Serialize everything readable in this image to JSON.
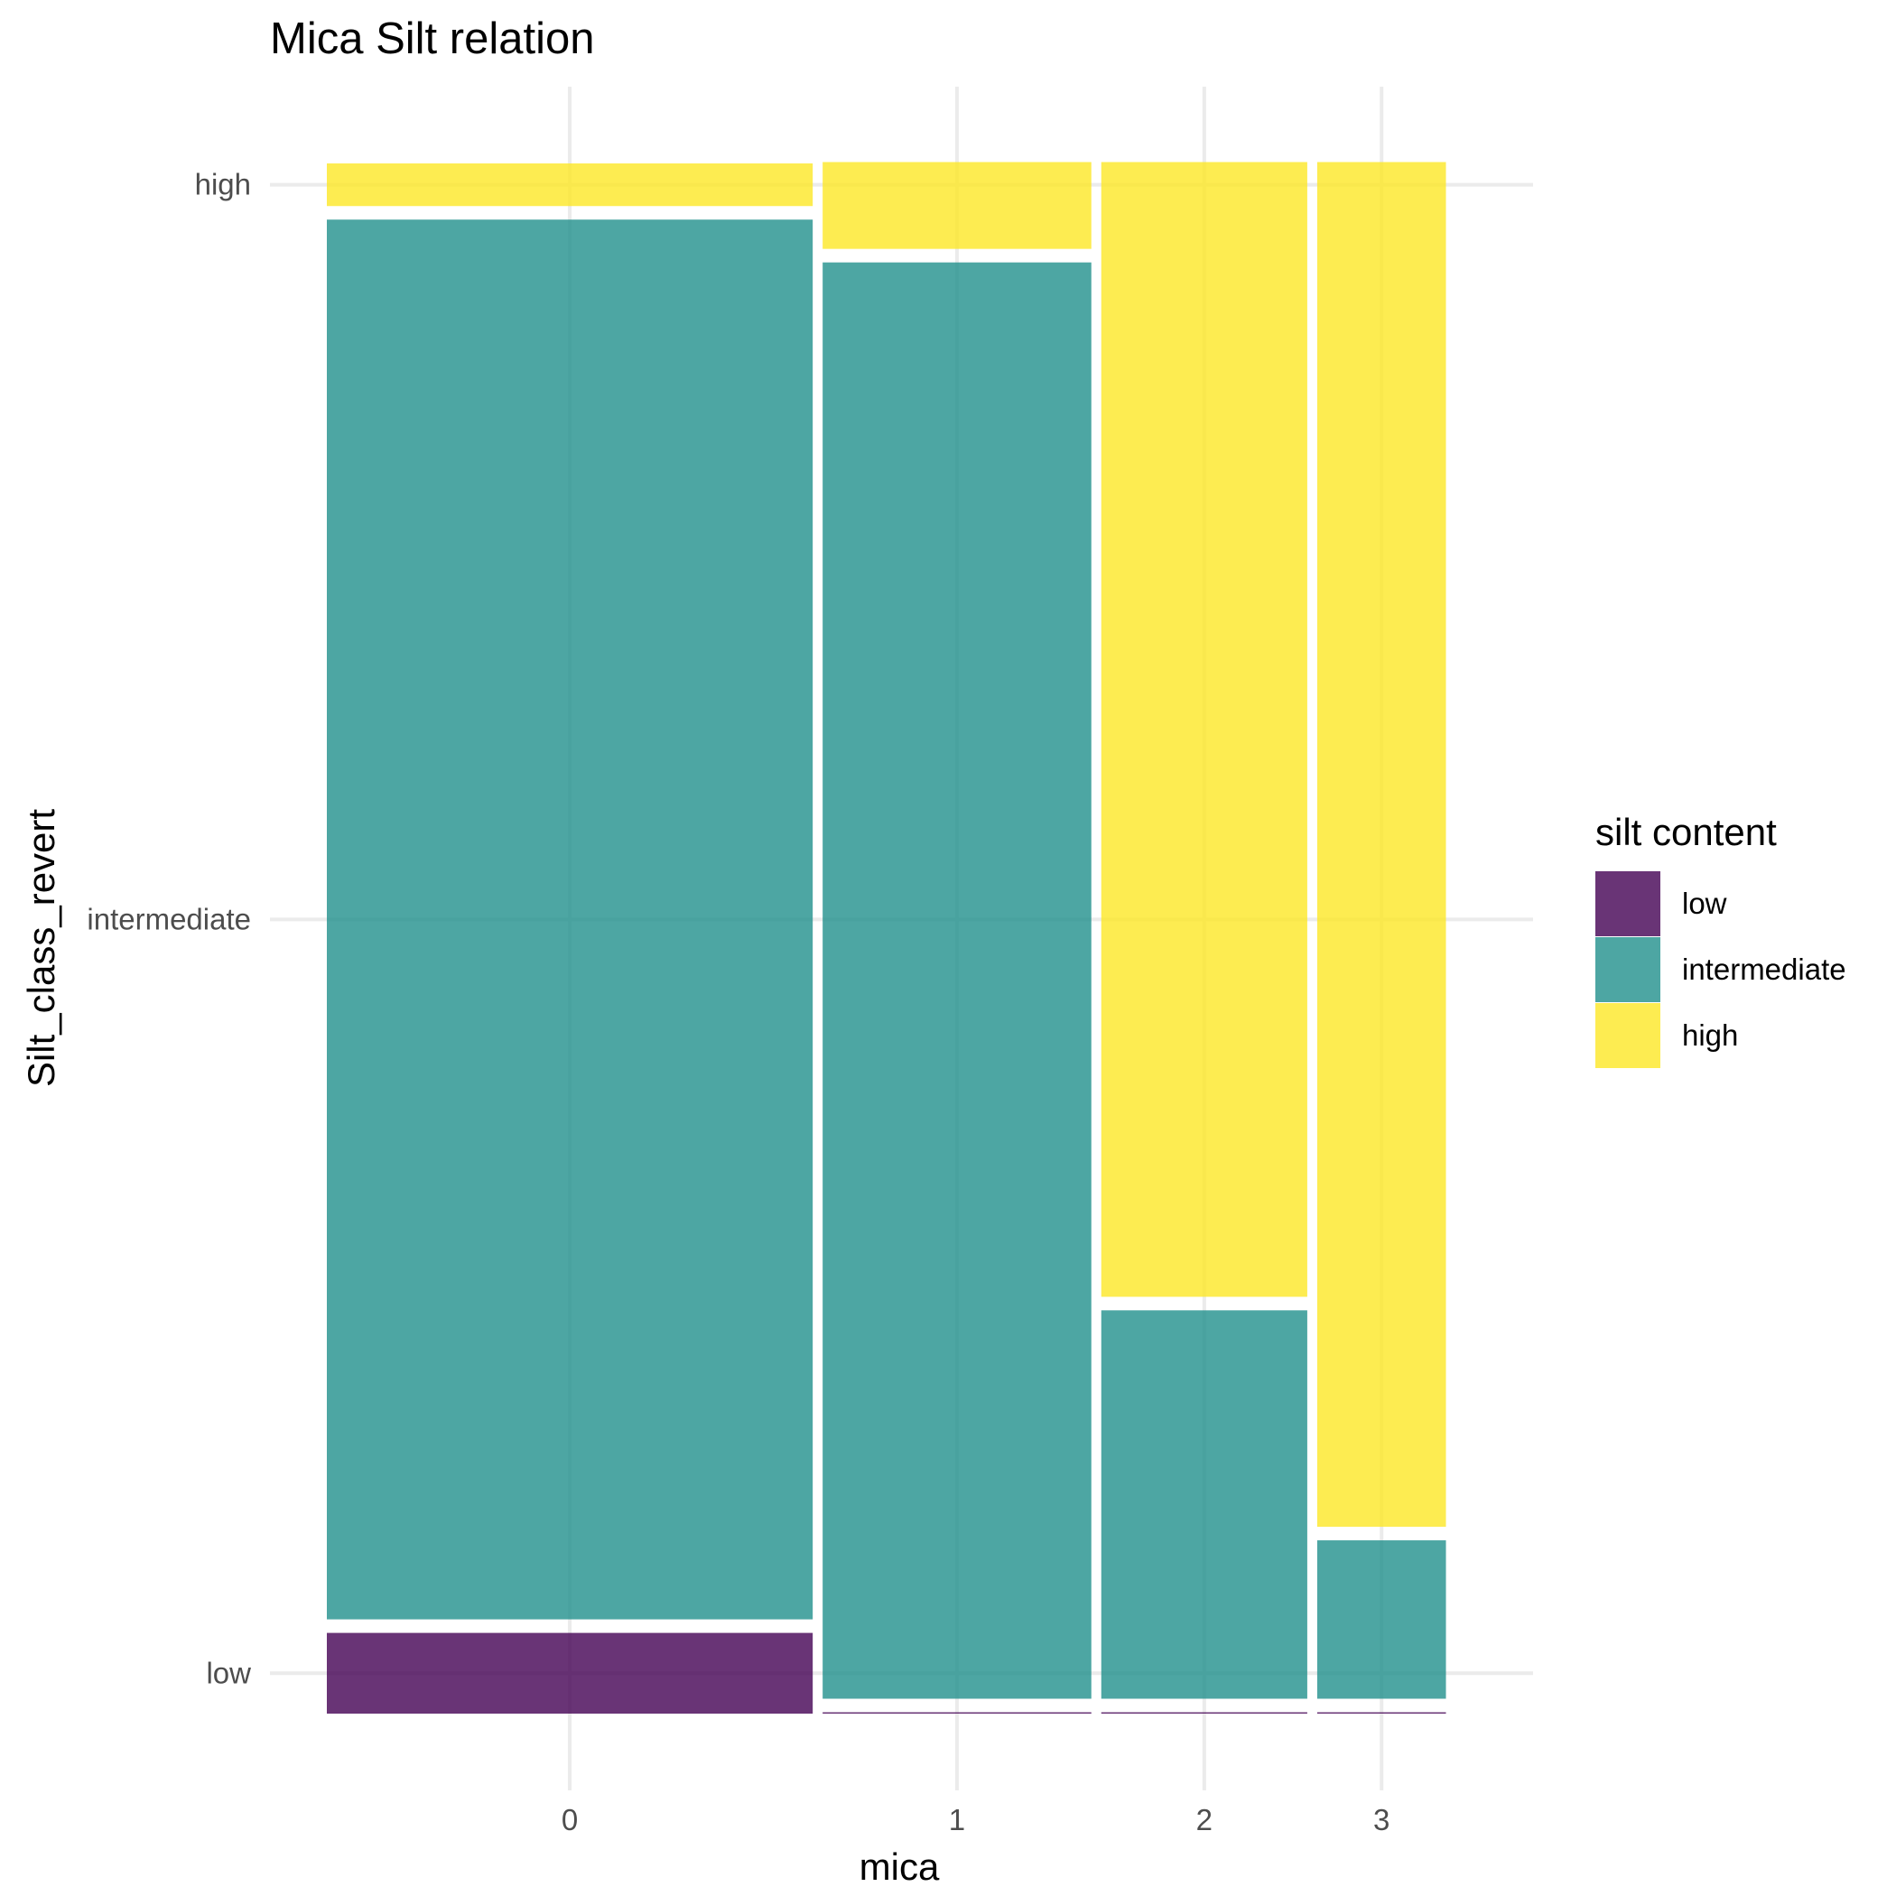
{
  "chart_data": {
    "type": "mosaic",
    "title": "Mica Silt relation",
    "xlabel": "mica",
    "ylabel": "Silt_class_revert",
    "x_categories": [
      "0",
      "1",
      "2",
      "3"
    ],
    "x_proportions": [
      0.434,
      0.24,
      0.184,
      0.115
    ],
    "y_categories": [
      "low",
      "intermediate",
      "high"
    ],
    "y_tick_labels": [
      "low",
      "intermediate",
      "high"
    ],
    "series": [
      {
        "name": "low",
        "color": "#440154",
        "values": [
          0.053,
          0.0,
          0.0,
          0.0
        ]
      },
      {
        "name": "intermediate",
        "color": "#21908C",
        "values": [
          0.919,
          0.943,
          0.255,
          0.104
        ]
      },
      {
        "name": "high",
        "color": "#FDE725",
        "values": [
          0.028,
          0.057,
          0.745,
          0.896
        ]
      }
    ],
    "legend": {
      "title": "silt content",
      "position": "right",
      "entries": [
        "low",
        "intermediate",
        "high"
      ]
    },
    "grid": true,
    "fill_opacity": 0.8
  }
}
